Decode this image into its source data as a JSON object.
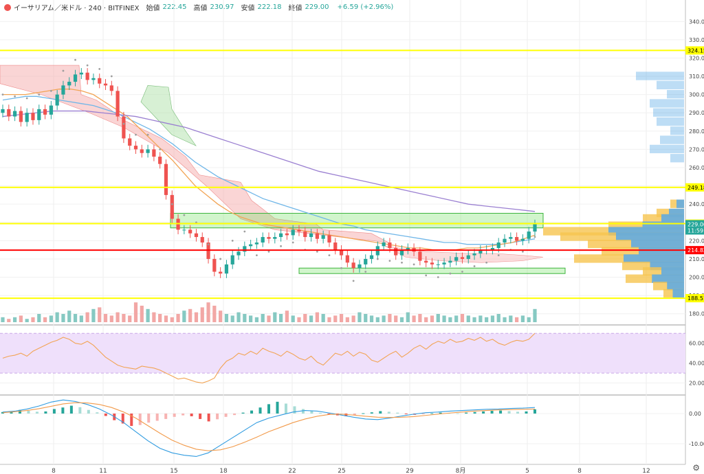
{
  "legend": {
    "symbol": "イーサリアム／米ドル · 240 · BITFINEX",
    "open_label": "始値",
    "open": "222.45",
    "high_label": "高値",
    "high": "230.97",
    "low_label": "安値",
    "low": "222.18",
    "close_label": "終値",
    "close": "229.00",
    "change": "+6.59 (+2.96%)"
  },
  "colors": {
    "up": "#26a69a",
    "down": "#ef5350",
    "up_vol": "#86c9c2",
    "down_vol": "#f2a7a5",
    "hline": "#ffff00",
    "redline": "#ff0000",
    "ma_blue": "#6fb6e8",
    "ma_orange": "#f2a454",
    "ma_purple": "#9a7fd1",
    "cloud_red": "#f6b3b3",
    "cloud_green": "#b7e3b0",
    "zone": "#7ce26e",
    "rsi_band": "#efe0fb",
    "rsi_line": "#f2a454",
    "profile_blue": "#5aa9e6",
    "profile_orange": "#f6c44f"
  },
  "chart_data": [
    {
      "type": "candlestick",
      "ylim": [
        175,
        345
      ],
      "y_ticks": [
        "340.00",
        "330.00",
        "320.00",
        "310.00",
        "300.00",
        "290.00",
        "280.00",
        "270.00",
        "260.00",
        "250.00",
        "240.00",
        "230.00",
        "220.00",
        "210.00",
        "200.00",
        "190.00",
        "180.00"
      ],
      "x_ticks": [
        "8",
        "11",
        "15",
        "18",
        "22",
        "25",
        "29",
        "8月",
        "5",
        "8",
        "12"
      ],
      "horizontal_levels": [
        {
          "label": "324.15",
          "value": 324.15,
          "color": "yellow"
        },
        {
          "label": "249.18",
          "value": 249.18,
          "color": "yellow"
        },
        {
          "label": "229.35",
          "value": 229.35,
          "color": "yellow"
        },
        {
          "label": "214.82",
          "value": 214.82,
          "color": "red"
        },
        {
          "label": "188.51",
          "value": 188.51,
          "color": "yellow"
        }
      ],
      "price_tags": [
        {
          "label": "229.00",
          "value": 229.0,
          "color": "#26a69a"
        },
        {
          "label": "11:59",
          "value": 225.6,
          "color": "#26a69a"
        }
      ],
      "zones": [
        {
          "from_x": "15",
          "to_x": "5",
          "y_low": 227,
          "y_high": 235
        },
        {
          "from_x": "22",
          "to_x": "8",
          "y_low": 202,
          "y_high": 205
        }
      ],
      "closes": [
        292,
        288,
        291,
        285,
        290,
        286,
        292,
        289,
        294,
        300,
        305,
        307,
        311,
        312,
        308,
        309,
        306,
        305,
        302,
        288,
        276,
        272,
        270,
        268,
        270,
        266,
        262,
        245,
        232,
        226,
        226,
        224,
        222,
        219,
        210,
        203,
        202,
        207,
        212,
        214,
        217,
        218,
        219,
        222,
        221,
        222,
        224,
        223,
        226,
        225,
        222,
        224,
        221,
        223,
        219,
        215,
        212,
        208,
        205,
        207,
        210,
        212,
        217,
        219,
        216,
        212,
        215,
        216,
        214,
        209,
        208,
        207,
        207,
        208,
        209,
        211,
        210,
        212,
        213,
        215,
        215,
        216,
        219,
        221,
        222,
        220,
        221,
        225,
        229
      ],
      "moving_averages": [
        {
          "name": "blue",
          "values": [
            297,
            298,
            299,
            299,
            298,
            297,
            296,
            295,
            294,
            292,
            290,
            287,
            284,
            281,
            277,
            273,
            268,
            263,
            259,
            255,
            252,
            249,
            246,
            243,
            241,
            239,
            237,
            235,
            233,
            231,
            229,
            228,
            226,
            225,
            224,
            223,
            222,
            221,
            220,
            219,
            219,
            218,
            218,
            218,
            218,
            219,
            220,
            221
          ]
        },
        {
          "name": "orange",
          "values": [
            300,
            300,
            300,
            301,
            302,
            303,
            303,
            302,
            300,
            296,
            292,
            288,
            282,
            276,
            270,
            264,
            257,
            250,
            245,
            240,
            236,
            233,
            231,
            229,
            228,
            227,
            226,
            225,
            224,
            223,
            222,
            221,
            220,
            219,
            218,
            217,
            216,
            216,
            215,
            215,
            215,
            216,
            216,
            217,
            218,
            219,
            221,
            223
          ]
        },
        {
          "name": "purple",
          "values": [
            288,
            289,
            290,
            291,
            291,
            291,
            290,
            289,
            288,
            286,
            284,
            282,
            279,
            276,
            273,
            270,
            267,
            264,
            261,
            258,
            256,
            254,
            252,
            250,
            248,
            246,
            244,
            242,
            240,
            239,
            238,
            237,
            236
          ]
        }
      ],
      "volumes": [
        3,
        2,
        3,
        4,
        2,
        3,
        5,
        3,
        4,
        6,
        5,
        7,
        5,
        4,
        6,
        8,
        9,
        5,
        4,
        6,
        5,
        4,
        12,
        10,
        8,
        6,
        5,
        4,
        3,
        5,
        7,
        8,
        6,
        9,
        12,
        10,
        7,
        5,
        4,
        6,
        5,
        4,
        3,
        5,
        4,
        6,
        5,
        7,
        4,
        3,
        5,
        4,
        6,
        5,
        3,
        4,
        5,
        3,
        4,
        6,
        5,
        4,
        3,
        4,
        5,
        4,
        3,
        6,
        4,
        5,
        3,
        4,
        5,
        4,
        3,
        4,
        5,
        4,
        3,
        4,
        3,
        4,
        5,
        3,
        4,
        3,
        4,
        3,
        8
      ]
    },
    {
      "type": "line",
      "name": "RSI",
      "ylim": [
        10,
        75
      ],
      "y_ticks": [
        "60.00",
        "40.00",
        "20.00"
      ],
      "band": [
        30,
        70
      ],
      "values": [
        45,
        47,
        48,
        50,
        47,
        52,
        55,
        58,
        61,
        63,
        66,
        64,
        60,
        59,
        62,
        58,
        52,
        46,
        42,
        38,
        36,
        35,
        34,
        37,
        36,
        35,
        33,
        30,
        27,
        24,
        25,
        23,
        21,
        20,
        22,
        25,
        35,
        42,
        45,
        50,
        48,
        52,
        49,
        55,
        52,
        50,
        47,
        52,
        49,
        45,
        43,
        47,
        41,
        38,
        44,
        50,
        48,
        52,
        47,
        51,
        49,
        43,
        41,
        45,
        49,
        52,
        46,
        50,
        55,
        58,
        54,
        59,
        62,
        60,
        64,
        61,
        62,
        65,
        63,
        66,
        62,
        64,
        60,
        58,
        61,
        63,
        62,
        64,
        70
      ]
    },
    {
      "type": "bar",
      "name": "MACD",
      "ylim": [
        -15,
        5
      ],
      "y_ticks": [
        "0.00",
        "-10.00"
      ],
      "histogram": [
        0.5,
        0.8,
        1.2,
        0.9,
        0.6,
        0.7,
        1.5,
        2.0,
        2.6,
        2.1,
        1.2,
        0.4,
        -0.8,
        -2.2,
        -3.3,
        -4.1,
        -3.8,
        -3.0,
        -2.4,
        -1.8,
        -1.1,
        -0.6,
        -0.9,
        -1.8,
        -2.6,
        -1.9,
        -1.1,
        -0.5,
        0.3,
        1.0,
        2.0,
        3.1,
        3.9,
        3.3,
        2.4,
        1.5,
        0.8,
        0.2,
        -0.3,
        -0.6,
        -0.9,
        -0.5,
        0.1,
        0.4,
        0.8,
        0.6,
        0.3,
        -0.2,
        -0.4,
        -0.2,
        0.1,
        0.3,
        0.2,
        0.1,
        0.3,
        0.5,
        0.7,
        0.9,
        1.0,
        0.8,
        0.6,
        0.7,
        1.4
      ],
      "macd_line": [
        0.5,
        0.8,
        1.5,
        2.5,
        3.8,
        4.5,
        4.0,
        3.0,
        1.5,
        -0.5,
        -3.0,
        -6.0,
        -9.0,
        -11.5,
        -13.0,
        -13.8,
        -14.2,
        -13.0,
        -10.5,
        -8.0,
        -5.5,
        -3.0,
        -1.5,
        -0.5,
        0.5,
        1.0,
        0.8,
        0.2,
        -0.5,
        -1.2,
        -1.8,
        -2.0,
        -1.5,
        -0.8,
        -0.2,
        0.3,
        0.5,
        0.8,
        1.0,
        1.2,
        1.4,
        1.5,
        1.7,
        1.8,
        2.0
      ],
      "signal_line": [
        0.3,
        0.6,
        1.0,
        1.6,
        2.4,
        3.2,
        3.6,
        3.5,
        3.0,
        2.0,
        0.5,
        -1.5,
        -4.0,
        -6.5,
        -8.8,
        -10.5,
        -11.8,
        -12.3,
        -12.0,
        -11.0,
        -9.5,
        -7.8,
        -6.0,
        -4.5,
        -3.0,
        -1.8,
        -0.9,
        -0.3,
        -0.2,
        -0.5,
        -0.9,
        -1.2,
        -1.3,
        -1.2,
        -1.0,
        -0.6,
        -0.2,
        0.2,
        0.5,
        0.8,
        1.0,
        1.2,
        1.3,
        1.4,
        1.5
      ]
    }
  ]
}
